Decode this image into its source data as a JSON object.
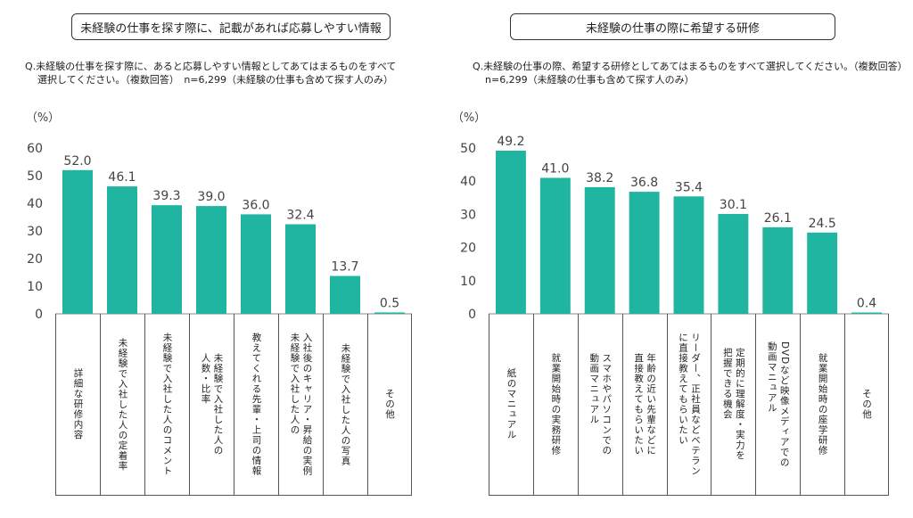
{
  "left": {
    "title": "未経験の仕事を探す際に、記載があれば応募しやすい情報",
    "question_line1": "Q.未経験の仕事を探す際に、あると応募しやすい情報としてあてはまるものをすべて",
    "question_line2": "選択してください。（複数回答）　n=6,299（未経験の仕事も含めて探す人のみ）",
    "unit": "（%）"
  },
  "right": {
    "title": "未経験の仕事の際に希望する研修",
    "question_line1": "Q.未経験の仕事の際、希望する研修としてあてはまるものをすべて選択してください。（複数回答）",
    "question_line2": "n=6,299（未経験の仕事も含めて探す人のみ）",
    "unit": "（%）"
  },
  "chart_data": [
    {
      "type": "bar",
      "title": "未経験の仕事を探す際に、記載があれば応募しやすい情報",
      "ylabel": "（%）",
      "ylim": [
        0,
        60
      ],
      "yticks": [
        0,
        10,
        20,
        30,
        40,
        50,
        60
      ],
      "categories": [
        "詳細な研修内容",
        "未経験で入社した人の定着率",
        "未経験で入社した人のコメント",
        "未経験で入社した人の\n人数・比率",
        "教えてくれる先輩・上司の情報",
        "入社後のキャリア・昇給の実例\n未経験で入社した人の",
        "未経験で入社した人の写真",
        "その他"
      ],
      "values": [
        52.0,
        46.1,
        39.3,
        39.0,
        36.0,
        32.4,
        13.7,
        0.5
      ],
      "value_labels": [
        "52.0",
        "46.1",
        "39.3",
        "39.0",
        "36.0",
        "32.4",
        "13.7",
        "0.5"
      ],
      "bar_color": "#1fb5a0"
    },
    {
      "type": "bar",
      "title": "未経験の仕事の際に希望する研修",
      "ylabel": "（%）",
      "ylim": [
        0,
        50
      ],
      "yticks": [
        0,
        10,
        20,
        30,
        40,
        50
      ],
      "categories": [
        "紙のマニュアル",
        "就業開始時の実務研修",
        "スマホやパソコンでの\n動画マニュアル",
        "年齢の近い先輩などに\n直接教えてもらいたい",
        "リーダー、正社員などベテラン\nに直接教えてもらいたい",
        "定期的に理解度・実力を\n把握できる機会",
        "DVDなど映像メディアでの\n動画マニュアル",
        "就業開始時の座学研修",
        "その他"
      ],
      "values": [
        49.2,
        41.0,
        38.2,
        36.8,
        35.4,
        30.1,
        26.1,
        24.5,
        0.4
      ],
      "value_labels": [
        "49.2",
        "41.0",
        "38.2",
        "36.8",
        "35.4",
        "30.1",
        "26.1",
        "24.5",
        "0.4"
      ],
      "bar_color": "#1fb5a0"
    }
  ]
}
